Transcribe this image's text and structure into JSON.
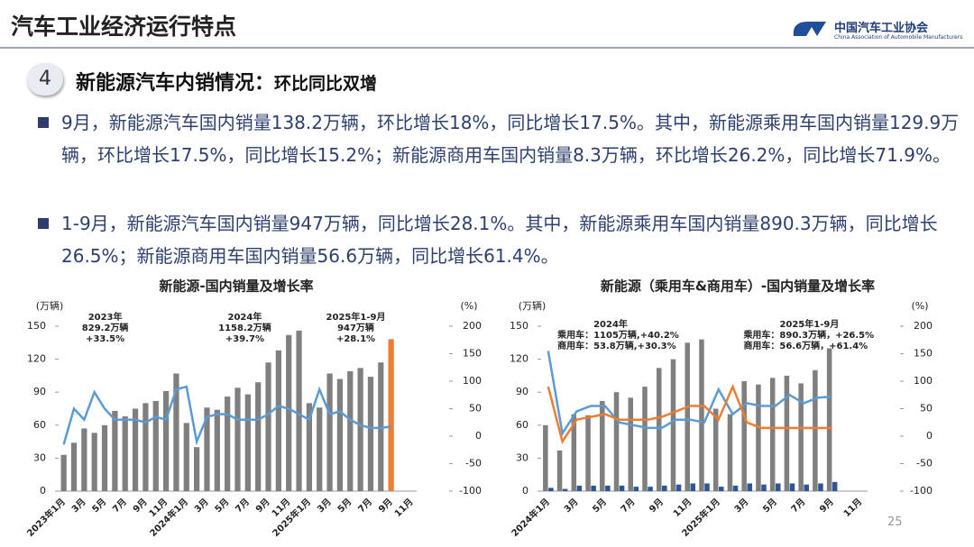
{
  "header": {
    "title": "汽车工业经济运行特点",
    "org_name": "中国汽车工业协会",
    "org_name_en": "China Association of Automobile Manufacturers"
  },
  "section": {
    "number": "4",
    "heading": "新能源汽车内销情况：",
    "subheading": "环比同比双增"
  },
  "bullets": [
    "9月，新能源汽车国内销量138.2万辆，环比增长18%，同比增长17.5%。其中，新能源乘用车国内销量129.9万辆，环比增长17.5%，同比增长15.2%；新能源商用车国内销量8.3万辆，环比增长26.2%，同比增长71.9%。",
    "1-9月，新能源汽车国内销量947万辆，同比增长28.1%。其中，新能源乘用车国内销量890.3万辆，同比增长26.5%；新能源商用车国内销量56.6万辆，同比增长61.4%。"
  ],
  "page_number": "25",
  "chart_data": [
    {
      "type": "bar",
      "title": "新能源-国内销量及增长率",
      "y_label": "(万辆)",
      "y2_label": "(%)",
      "categories": [
        "2023年1月",
        null,
        "3月",
        null,
        "5月",
        null,
        "7月",
        null,
        "9月",
        null,
        "11月",
        null,
        "2024年1月",
        null,
        "3月",
        null,
        "5月",
        null,
        "7月",
        null,
        "9月",
        null,
        "11月",
        null,
        "2025年1月",
        null,
        "3月",
        null,
        "5月",
        null,
        "7月",
        null,
        "9月",
        null,
        "11月"
      ],
      "series": [
        {
          "kind": "bar",
          "color": "#7f7f7f",
          "values": [
            33,
            44,
            57,
            53,
            60,
            73,
            68,
            75,
            80,
            82,
            91,
            107,
            62,
            40,
            76,
            74,
            86,
            94,
            88,
            99,
            117,
            128,
            142,
            146,
            80,
            76,
            107,
            102,
            109,
            112,
            104,
            117,
            null,
            null,
            null
          ]
        },
        {
          "kind": "bar",
          "color": "#ed7d31",
          "values": [
            null,
            null,
            null,
            null,
            null,
            null,
            null,
            null,
            null,
            null,
            null,
            null,
            null,
            null,
            null,
            null,
            null,
            null,
            null,
            null,
            null,
            null,
            null,
            null,
            null,
            null,
            null,
            null,
            null,
            null,
            null,
            null,
            138.2,
            null,
            null
          ]
        },
        {
          "kind": "line",
          "axis": "y2",
          "color": "#5b9bd5",
          "values": [
            -15,
            50,
            30,
            80,
            50,
            30,
            30,
            30,
            25,
            35,
            30,
            85,
            90,
            -10,
            35,
            40,
            40,
            30,
            30,
            30,
            40,
            55,
            50,
            40,
            30,
            85,
            40,
            45,
            30,
            20,
            15,
            15,
            17.5,
            null,
            null
          ]
        }
      ],
      "ylim": [
        0,
        150
      ],
      "yticks": [
        0,
        30,
        60,
        90,
        120,
        150
      ],
      "y2lim": [
        -100,
        200
      ],
      "y2ticks": [
        -100,
        -50,
        0,
        50,
        100,
        150,
        200
      ],
      "annotations": [
        [
          "2023年",
          "829.2万辆",
          "+33.5%"
        ],
        [
          "2024年",
          "1158.2万辆",
          "+39.7%"
        ],
        [
          "2025年1-9月",
          "947万辆",
          "+28.1%"
        ]
      ]
    },
    {
      "type": "bar",
      "title": "新能源（乘用车&商用车）-国内销量及增长率",
      "y_label": "(万辆)",
      "y2_label": "(%)",
      "categories": [
        "2024年1月",
        null,
        "3月",
        null,
        "5月",
        null,
        "7月",
        null,
        "9月",
        null,
        "11月",
        null,
        "2025年1月",
        null,
        "3月",
        null,
        "5月",
        null,
        "7月",
        null,
        "9月",
        null,
        "11月"
      ],
      "series": [
        {
          "kind": "bar",
          "color": "#7f7f7f",
          "values": [
            60,
            37,
            70,
            69,
            82,
            90,
            85,
            95,
            112,
            120,
            135,
            138,
            75,
            70,
            100,
            97,
            103,
            105,
            98,
            110,
            129.9,
            null,
            null
          ]
        },
        {
          "kind": "bar",
          "color": "#2e5597",
          "values": [
            3,
            2,
            5,
            5,
            5,
            5,
            4,
            4,
            5,
            6,
            7,
            7,
            4,
            5,
            7,
            6,
            7,
            7,
            6,
            7,
            8.3,
            null,
            null
          ]
        },
        {
          "kind": "line",
          "axis": "y2",
          "color": "#5b9bd5",
          "values": [
            155,
            5,
            45,
            55,
            55,
            25,
            20,
            15,
            15,
            30,
            30,
            25,
            85,
            40,
            60,
            55,
            55,
            75,
            60,
            70,
            72,
            null,
            null
          ]
        },
        {
          "kind": "line",
          "axis": "y2",
          "color": "#ed7d31",
          "values": [
            90,
            -10,
            30,
            35,
            40,
            30,
            30,
            30,
            35,
            45,
            55,
            55,
            30,
            90,
            25,
            15,
            15,
            15,
            15,
            15,
            15,
            null,
            null
          ]
        }
      ],
      "ylim": [
        0,
        150
      ],
      "yticks": [
        0,
        30,
        60,
        90,
        120,
        150
      ],
      "y2lim": [
        -100,
        200
      ],
      "y2ticks": [
        -100,
        -50,
        0,
        50,
        100,
        150,
        200
      ],
      "annotations": [
        [
          "2024年",
          "乘用车：1105万辆,+40.2%",
          "商用车：53.8万辆,+30.3%"
        ],
        [
          "2025年1-9月",
          "乘用车：890.3万辆，+26.5%",
          "商用车：56.6万辆，+61.4%"
        ]
      ]
    }
  ]
}
